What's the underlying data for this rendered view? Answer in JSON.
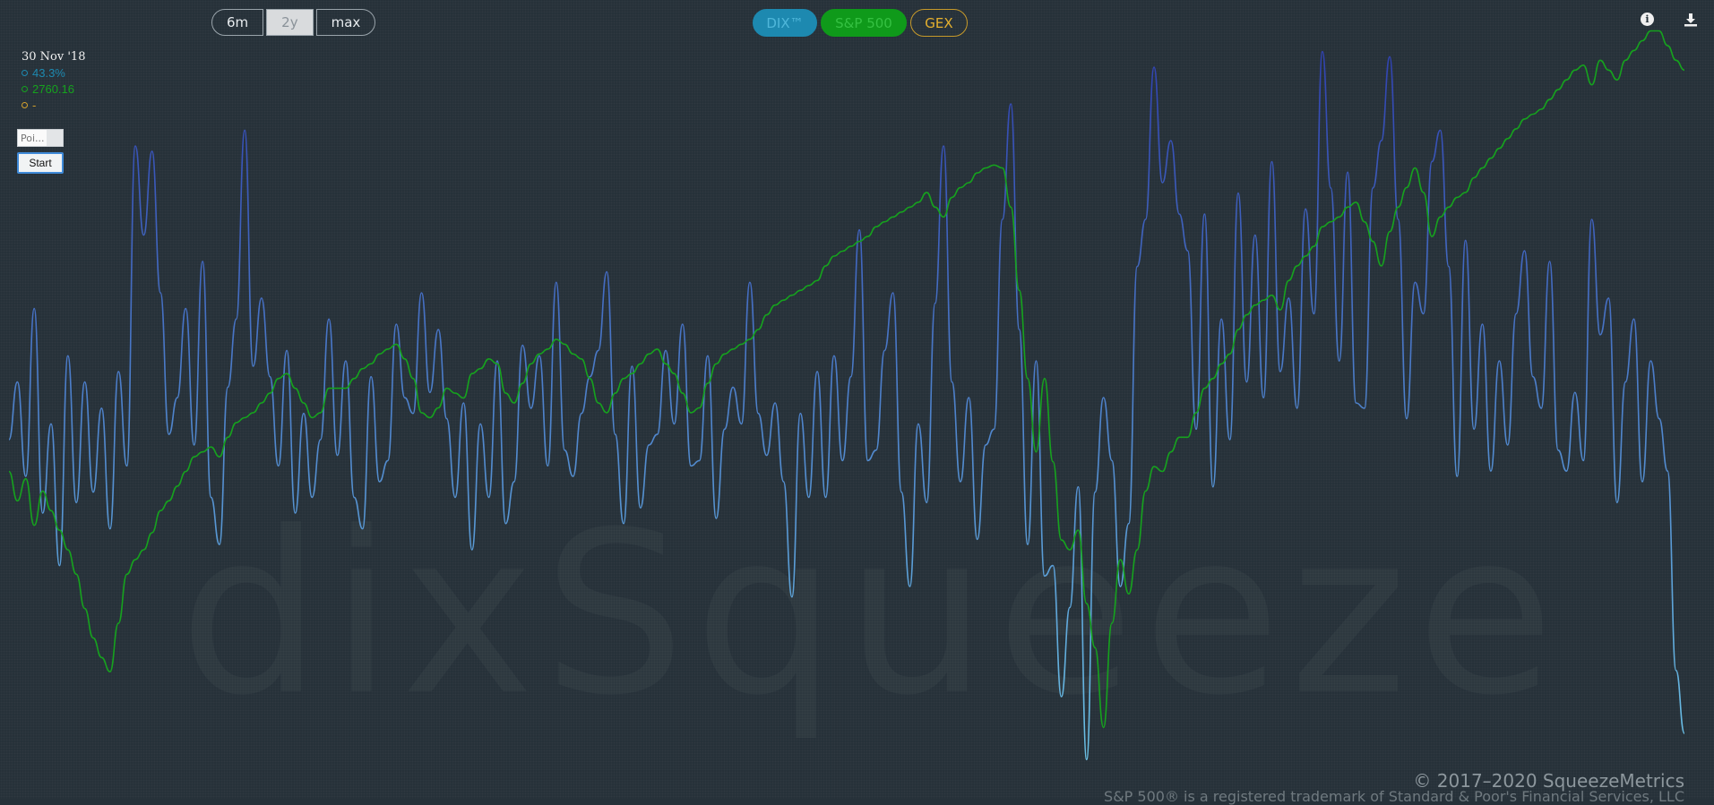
{
  "range_buttons": {
    "six_months": "6m",
    "two_years": "2y",
    "max": "max"
  },
  "series_buttons": {
    "dix": "DIX™",
    "spx": "S&P 500",
    "gex": "GEX"
  },
  "tooltip": {
    "date": "30 Nov '18",
    "dix_value": "43.3%",
    "spx_value": "2760.16",
    "gex_value": "-"
  },
  "controls": {
    "point_placeholder": "Poi...",
    "start_label": "Start"
  },
  "watermark": "dixSqueeze",
  "footer": {
    "copyright": "© 2017–2020 SqueezeMetrics",
    "trademark": "S&P 500® is a registered trademark of Standard & Poor's Financial Services, LLC"
  },
  "icons": {
    "info": "info-icon",
    "download": "download-icon"
  },
  "colors": {
    "dix_low": "#6cc3e6",
    "dix_high": "#2f3fb0",
    "spx": "#16a21e",
    "gex": "#d4a12d",
    "background": "#263139"
  },
  "chart_data": {
    "type": "line",
    "x_range": [
      "Nov 2018",
      "Nov 2020"
    ],
    "grid": false,
    "legend": "top-center",
    "series": [
      {
        "name": "DIX™",
        "unit": "%",
        "ylim": [
          37,
          51
        ],
        "values": [
          43.3,
          44.4,
          42.6,
          45.8,
          41.9,
          43.6,
          40.9,
          44.9,
          42.1,
          44.4,
          42.3,
          43.9,
          41.6,
          44.6,
          42.8,
          48.9,
          47.2,
          48.8,
          46.1,
          43.4,
          44.1,
          45.8,
          43.2,
          46.7,
          42.2,
          41.3,
          44.3,
          45.6,
          49.2,
          44.7,
          46.0,
          44.5,
          42.8,
          45.0,
          41.9,
          43.8,
          42.2,
          43.3,
          45.6,
          43.0,
          44.8,
          42.2,
          41.6,
          44.5,
          42.5,
          42.9,
          45.5,
          44.1,
          43.8,
          46.1,
          44.2,
          45.4,
          43.7,
          42.2,
          44.0,
          41.2,
          43.6,
          42.2,
          44.8,
          41.7,
          42.5,
          45.1,
          43.9,
          44.9,
          42.8,
          46.3,
          43.1,
          42.6,
          43.8,
          44.5,
          45.0,
          46.5,
          43.4,
          41.7,
          44.7,
          42.0,
          43.2,
          43.4,
          45.0,
          43.6,
          45.5,
          42.8,
          42.9,
          44.9,
          41.8,
          43.5,
          44.3,
          43.6,
          46.3,
          43.8,
          43.0,
          44.0,
          42.5,
          40.3,
          43.8,
          42.2,
          44.6,
          42.2,
          44.9,
          42.9,
          44.5,
          47.3,
          42.9,
          43.1,
          45.0,
          46.1,
          42.3,
          40.5,
          43.6,
          42.1,
          45.9,
          48.9,
          44.4,
          42.5,
          44.1,
          41.4,
          43.2,
          43.5,
          47.5,
          49.7,
          45.4,
          41.3,
          44.8,
          40.7,
          40.9,
          38.4,
          40.1,
          42.4,
          37.2,
          42.3,
          44.1,
          42.9,
          40.5,
          41.7,
          46.6,
          47.5,
          50.4,
          48.2,
          49.0,
          47.6,
          46.9,
          43.5,
          47.6,
          42.4,
          45.6,
          43.3,
          48.0,
          44.4,
          47.2,
          44.1,
          48.6,
          44.6,
          46.0,
          43.9,
          47.7,
          45.7,
          50.7,
          48.1,
          44.8,
          48.4,
          44.0,
          43.9,
          48.1,
          49.0,
          50.6,
          47.5,
          43.7,
          46.3,
          45.7,
          48.6,
          49.2,
          46.6,
          42.6,
          47.1,
          43.5,
          45.5,
          42.7,
          44.8,
          43.2,
          45.7,
          46.9,
          44.5,
          43.9,
          46.7,
          43.1,
          42.7,
          44.2,
          42.9,
          47.5,
          45.3,
          46.0,
          42.1,
          44.4,
          45.6,
          42.5,
          44.8,
          43.7,
          42.7,
          38.9,
          37.7
        ]
      },
      {
        "name": "S&P 500",
        "ylim": [
          2150,
          3650
        ],
        "values": [
          2760,
          2700,
          2745,
          2650,
          2720,
          2680,
          2640,
          2600,
          2550,
          2480,
          2420,
          2380,
          2351,
          2450,
          2550,
          2580,
          2600,
          2635,
          2680,
          2700,
          2730,
          2760,
          2790,
          2800,
          2810,
          2790,
          2830,
          2860,
          2870,
          2880,
          2900,
          2920,
          2950,
          2960,
          2930,
          2900,
          2870,
          2880,
          2930,
          2930,
          2930,
          2950,
          2970,
          2980,
          3000,
          3010,
          3020,
          2990,
          2950,
          2880,
          2870,
          2890,
          2930,
          2920,
          2910,
          2960,
          2970,
          2990,
          2980,
          2920,
          2900,
          2940,
          2980,
          3000,
          3010,
          3030,
          3020,
          3000,
          2990,
          2950,
          2900,
          2880,
          2920,
          2950,
          2960,
          2980,
          3000,
          3010,
          2980,
          2960,
          2920,
          2880,
          2890,
          2940,
          2980,
          3000,
          3010,
          3020,
          3030,
          3050,
          3080,
          3100,
          3110,
          3120,
          3130,
          3140,
          3150,
          3180,
          3200,
          3210,
          3220,
          3230,
          3240,
          3260,
          3270,
          3280,
          3290,
          3300,
          3310,
          3330,
          3300,
          3280,
          3320,
          3340,
          3350,
          3370,
          3380,
          3386,
          3380,
          3300,
          3130,
          2950,
          2800,
          2950,
          2780,
          2620,
          2600,
          2640,
          2490,
          2400,
          2237,
          2450,
          2580,
          2510,
          2600,
          2720,
          2770,
          2760,
          2800,
          2830,
          2830,
          2880,
          2930,
          2950,
          2980,
          3000,
          3050,
          3080,
          3100,
          3110,
          3120,
          3090,
          3150,
          3180,
          3200,
          3220,
          3260,
          3270,
          3280,
          3300,
          3310,
          3270,
          3230,
          3180,
          3250,
          3300,
          3340,
          3380,
          3330,
          3240,
          3280,
          3300,
          3320,
          3330,
          3360,
          3380,
          3400,
          3420,
          3440,
          3460,
          3480,
          3490,
          3500,
          3520,
          3540,
          3560,
          3580,
          3590,
          3550,
          3600,
          3580,
          3560,
          3600,
          3620,
          3640,
          3660,
          3660,
          3630,
          3600,
          3580
        ]
      }
    ]
  }
}
